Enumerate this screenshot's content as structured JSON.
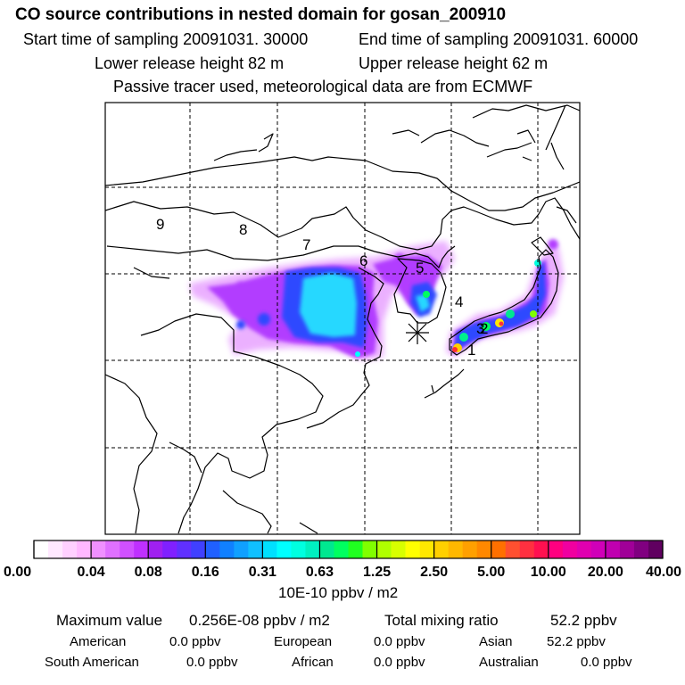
{
  "header": {
    "title": "CO  source contributions in nested domain for gosan_200910",
    "start_label": "Start time of sampling 20091031. 30000",
    "end_label": "End time of sampling 20091031. 60000",
    "lower_label": "Lower release height   82 m",
    "upper_label": "Upper release height   62 m",
    "note": "Passive tracer used, meteorological data are from ECMWF"
  },
  "map": {
    "region_labels": [
      "1",
      "2",
      "3",
      "4",
      "5",
      "6",
      "7",
      "8",
      "9"
    ],
    "receptor": "gosan"
  },
  "colorbar": {
    "ticks": [
      "0.00",
      "0.04",
      "0.08",
      "0.16",
      "0.31",
      "0.63",
      "1.25",
      "2.50",
      "5.00",
      "10.00",
      "20.00",
      "40.00"
    ],
    "colors": [
      [
        "#ffffff",
        "#ffe8ff",
        "#ffd0ff",
        "#ffb8ff"
      ],
      [
        "#f090ff",
        "#e070ff",
        "#d050ff",
        "#bf30ff"
      ],
      [
        "#a020f0",
        "#8020ff",
        "#6030ff",
        "#4040ff"
      ],
      [
        "#2060ff",
        "#1080ff",
        "#10a0ff",
        "#10c0ff"
      ],
      [
        "#00e0ff",
        "#00ffff",
        "#00ffe0",
        "#00f0c0"
      ],
      [
        "#00e890",
        "#00ff60",
        "#20ff20",
        "#80ff00"
      ],
      [
        "#b0ff00",
        "#d8ff00",
        "#ffff00",
        "#ffe800"
      ],
      [
        "#ffd000",
        "#ffb800",
        "#ffa000",
        "#ff8800"
      ],
      [
        "#ff7000",
        "#ff5030",
        "#ff3040",
        "#ff1050"
      ],
      [
        "#ff0080",
        "#f000a0",
        "#e000b0",
        "#d000b8"
      ],
      [
        "#c000b0",
        "#a00098",
        "#800080",
        "#600060"
      ]
    ],
    "units": "10E-10 ppbv / m2"
  },
  "summary": {
    "max_label": "Maximum value",
    "max_value": "0.256E-08 ppbv / m2",
    "total_label": "Total mixing ratio",
    "total_value": "52.2 ppbv",
    "sources": [
      {
        "name": "American",
        "value": "0.0 ppbv"
      },
      {
        "name": "European",
        "value": "0.0 ppbv"
      },
      {
        "name": "Asian",
        "value": "52.2 ppbv"
      },
      {
        "name": "South American",
        "value": "0.0 ppbv"
      },
      {
        "name": "African",
        "value": "0.0 ppbv"
      },
      {
        "name": "Australian",
        "value": "0.0 ppbv"
      }
    ]
  }
}
